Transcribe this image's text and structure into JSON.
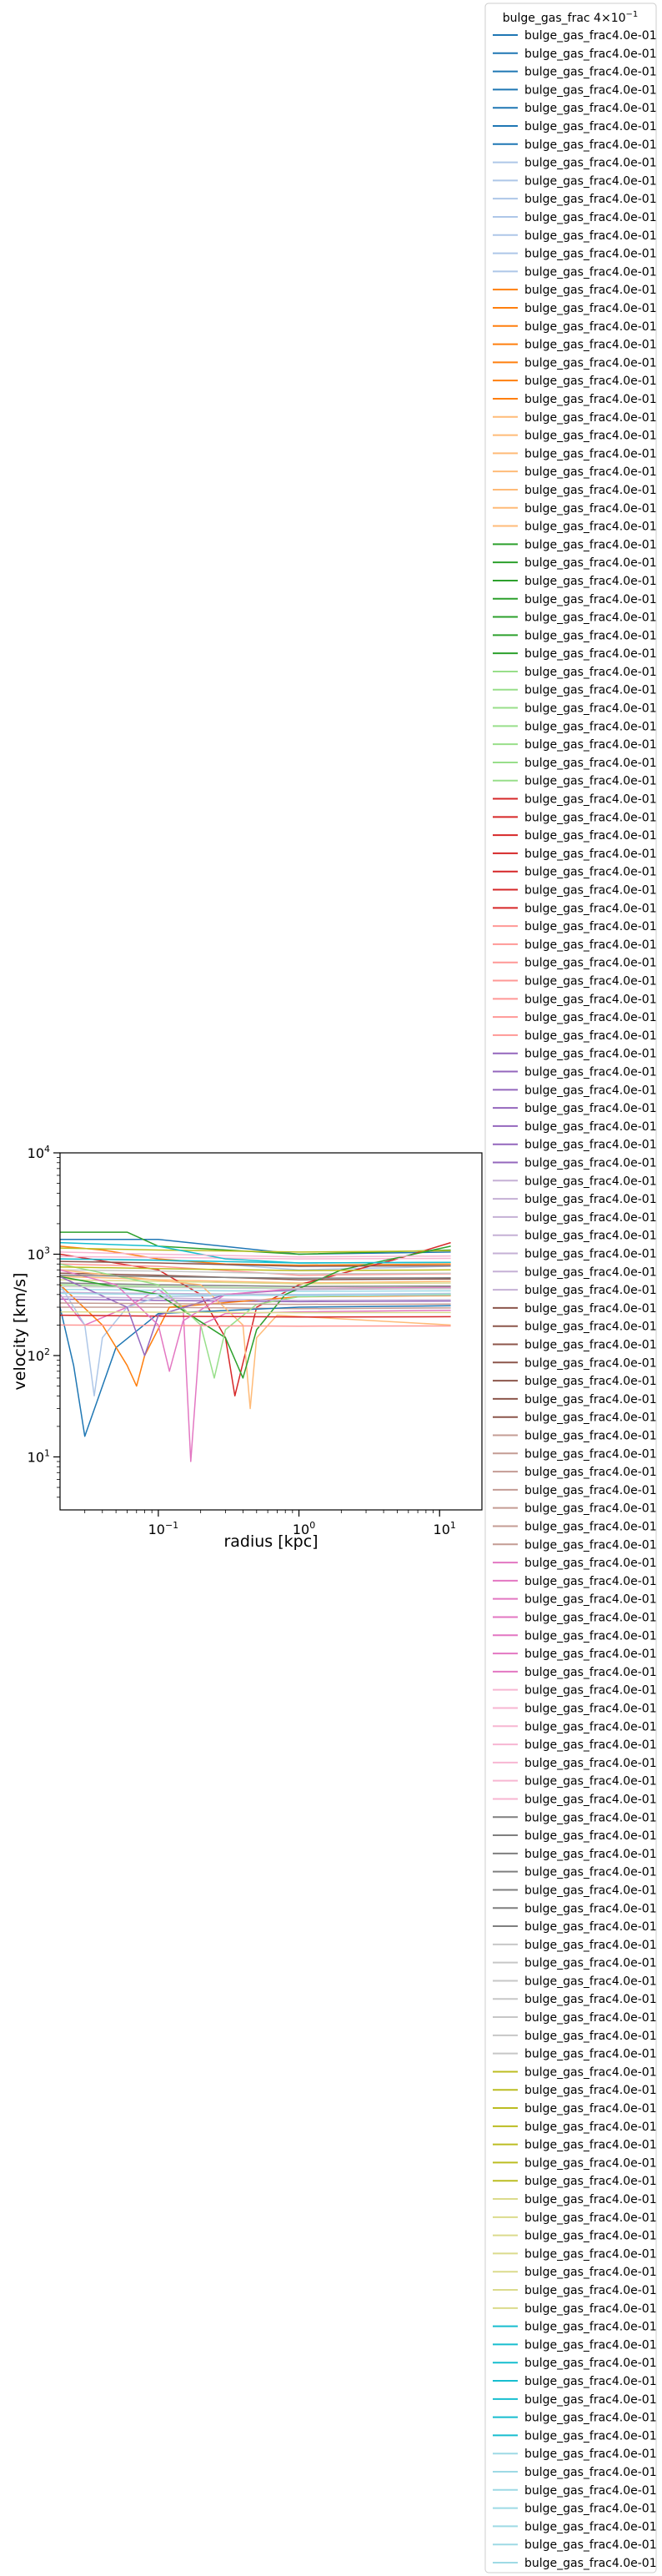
{
  "chart_data": {
    "type": "line",
    "xlabel": "radius [kpc]",
    "ylabel": "velocity [km/s]",
    "xscale": "log",
    "yscale": "log",
    "xlim": [
      0.02,
      20
    ],
    "ylim": [
      3,
      10000
    ],
    "x_ticks": [
      {
        "value": 0.1,
        "base": "10",
        "exp": "−1"
      },
      {
        "value": 1,
        "base": "10",
        "exp": "0"
      },
      {
        "value": 10,
        "base": "10",
        "exp": "1"
      }
    ],
    "y_ticks": [
      {
        "value": 10,
        "base": "10",
        "exp": "1"
      },
      {
        "value": 100,
        "base": "10",
        "exp": "2"
      },
      {
        "value": 1000,
        "base": "10",
        "exp": "3"
      },
      {
        "value": 10000,
        "base": "10",
        "exp": "4"
      }
    ],
    "legend": {
      "placement": "outside right",
      "title": "bulge_gas_frac 4×10",
      "title_exp": "−1",
      "entry_label": "bulge_gas_frac4.0e-01",
      "entry_count": 140
    },
    "palette": [
      "#1f77b4",
      "#aec7e8",
      "#ff7f0e",
      "#ffbb78",
      "#2ca02c",
      "#98df8a",
      "#d62728",
      "#ff9896",
      "#9467bd",
      "#c5b0d5",
      "#8c564b",
      "#c49c94",
      "#e377c2",
      "#f7b6d2",
      "#7f7f7f",
      "#c7c7c7",
      "#bcbd22",
      "#dbdb8d",
      "#17becf",
      "#9edae5"
    ],
    "series": [
      {
        "x": [
          0.02,
          0.1,
          1,
          12
        ],
        "y": [
          1400,
          1400,
          1000,
          1050
        ]
      },
      {
        "x": [
          0.02,
          0.1,
          1,
          12
        ],
        "y": [
          900,
          880,
          700,
          760
        ]
      },
      {
        "x": [
          0.02,
          0.04,
          0.1,
          0.3,
          1,
          12
        ],
        "y": [
          1200,
          1100,
          900,
          800,
          780,
          800
        ]
      },
      {
        "x": [
          0.02,
          0.05,
          0.1,
          1,
          12
        ],
        "y": [
          600,
          580,
          560,
          520,
          540
        ]
      },
      {
        "x": [
          0.02,
          0.06,
          0.1,
          1,
          12
        ],
        "y": [
          1650,
          1650,
          1200,
          1000,
          1100
        ]
      },
      {
        "x": [
          0.02,
          0.1,
          1,
          12
        ],
        "y": [
          500,
          480,
          460,
          470
        ]
      },
      {
        "x": [
          0.02,
          0.1,
          0.2,
          0.3,
          0.35,
          0.5,
          1,
          5,
          12
        ],
        "y": [
          1000,
          700,
          400,
          150,
          40,
          300,
          500,
          900,
          1300
        ]
      },
      {
        "x": [
          0.02,
          0.1,
          1,
          12
        ],
        "y": [
          800,
          760,
          620,
          640
        ]
      },
      {
        "x": [
          0.02,
          0.1,
          1,
          12
        ],
        "y": [
          360,
          350,
          340,
          345
        ]
      },
      {
        "x": [
          0.02,
          0.1,
          1,
          12
        ],
        "y": [
          420,
          410,
          400,
          405
        ]
      },
      {
        "x": [
          0.02,
          0.1,
          1,
          12
        ],
        "y": [
          650,
          620,
          560,
          570
        ]
      },
      {
        "x": [
          0.02,
          0.1,
          1,
          12
        ],
        "y": [
          300,
          300,
          290,
          295
        ]
      },
      {
        "x": [
          0.02,
          0.03,
          0.06,
          0.1,
          0.15,
          0.17,
          0.2,
          0.3,
          1,
          12
        ],
        "y": [
          400,
          200,
          300,
          450,
          300,
          9,
          200,
          260,
          270,
          280
        ]
      },
      {
        "x": [
          0.02,
          0.1,
          1,
          12
        ],
        "y": [
          950,
          930,
          900,
          910
        ]
      },
      {
        "x": [
          0.02,
          0.1,
          1,
          12
        ],
        "y": [
          520,
          500,
          480,
          485
        ]
      },
      {
        "x": [
          0.02,
          0.1,
          1,
          12
        ],
        "y": [
          700,
          680,
          640,
          650
        ]
      },
      {
        "x": [
          0.02,
          0.1,
          1,
          12
        ],
        "y": [
          1150,
          1100,
          1050,
          1080
        ]
      },
      {
        "x": [
          0.02,
          0.1,
          1,
          12
        ],
        "y": [
          560,
          540,
          510,
          520
        ]
      },
      {
        "x": [
          0.02,
          0.1,
          0.3,
          1,
          12
        ],
        "y": [
          1300,
          1200,
          900,
          820,
          830
        ]
      },
      {
        "x": [
          0.02,
          0.1,
          1,
          12
        ],
        "y": [
          450,
          440,
          430,
          435
        ]
      },
      {
        "x": [
          0.02,
          0.025,
          0.03,
          0.05,
          0.1,
          1,
          12
        ],
        "y": [
          300,
          80,
          16,
          120,
          260,
          300,
          310
        ]
      },
      {
        "x": [
          0.02,
          0.03,
          0.035,
          0.04,
          0.06,
          0.1,
          1,
          12
        ],
        "y": [
          500,
          200,
          40,
          150,
          300,
          380,
          400,
          410
        ]
      },
      {
        "x": [
          0.02,
          0.04,
          0.06,
          0.07,
          0.08,
          0.12,
          1,
          12
        ],
        "y": [
          500,
          200,
          80,
          50,
          100,
          300,
          380,
          390
        ]
      },
      {
        "x": [
          0.02,
          0.2,
          0.4,
          0.45,
          0.5,
          0.7,
          2,
          12
        ],
        "y": [
          700,
          500,
          200,
          30,
          150,
          250,
          230,
          200
        ]
      },
      {
        "x": [
          0.02,
          0.1,
          0.3,
          0.4,
          0.5,
          0.8,
          2,
          12
        ],
        "y": [
          600,
          400,
          150,
          60,
          180,
          400,
          700,
          1200
        ]
      },
      {
        "x": [
          0.02,
          0.1,
          0.2,
          0.25,
          0.3,
          0.5,
          1,
          12
        ],
        "y": [
          800,
          500,
          200,
          60,
          180,
          320,
          380,
          400
        ]
      },
      {
        "x": [
          0.02,
          0.1,
          1,
          12
        ],
        "y": [
          250,
          245,
          240,
          242
        ]
      },
      {
        "x": [
          0.02,
          0.1,
          1,
          12
        ],
        "y": [
          200,
          198,
          195,
          196
        ]
      },
      {
        "x": [
          0.02,
          0.06,
          0.08,
          0.1,
          0.3,
          1,
          12
        ],
        "y": [
          600,
          300,
          100,
          250,
          400,
          450,
          460
        ]
      },
      {
        "x": [
          0.02,
          0.1,
          1,
          12
        ],
        "y": [
          380,
          370,
          350,
          355
        ]
      },
      {
        "x": [
          0.02,
          0.1,
          1,
          12
        ],
        "y": [
          850,
          820,
          760,
          770
        ]
      },
      {
        "x": [
          0.02,
          0.1,
          1,
          12
        ],
        "y": [
          330,
          325,
          320,
          322
        ]
      },
      {
        "x": [
          0.02,
          0.05,
          0.1,
          0.12,
          0.15,
          0.3,
          1,
          12
        ],
        "y": [
          700,
          500,
          200,
          70,
          220,
          400,
          460,
          470
        ]
      },
      {
        "x": [
          0.02,
          0.1,
          1,
          12
        ],
        "y": [
          1050,
          1000,
          940,
          960
        ]
      },
      {
        "x": [
          0.02,
          0.1,
          1,
          12
        ],
        "y": [
          620,
          600,
          580,
          585
        ]
      },
      {
        "x": [
          0.02,
          0.1,
          1,
          12
        ],
        "y": [
          480,
          470,
          455,
          460
        ]
      },
      {
        "x": [
          0.02,
          0.1,
          1,
          12
        ],
        "y": [
          750,
          720,
          690,
          700
        ]
      },
      {
        "x": [
          0.02,
          0.1,
          1,
          12
        ],
        "y": [
          270,
          268,
          265,
          266
        ]
      },
      {
        "x": [
          0.02,
          0.1,
          1,
          12
        ],
        "y": [
          900,
          870,
          820,
          830
        ]
      },
      {
        "x": [
          0.02,
          0.1,
          1,
          12
        ],
        "y": [
          410,
          400,
          390,
          395
        ]
      }
    ]
  }
}
